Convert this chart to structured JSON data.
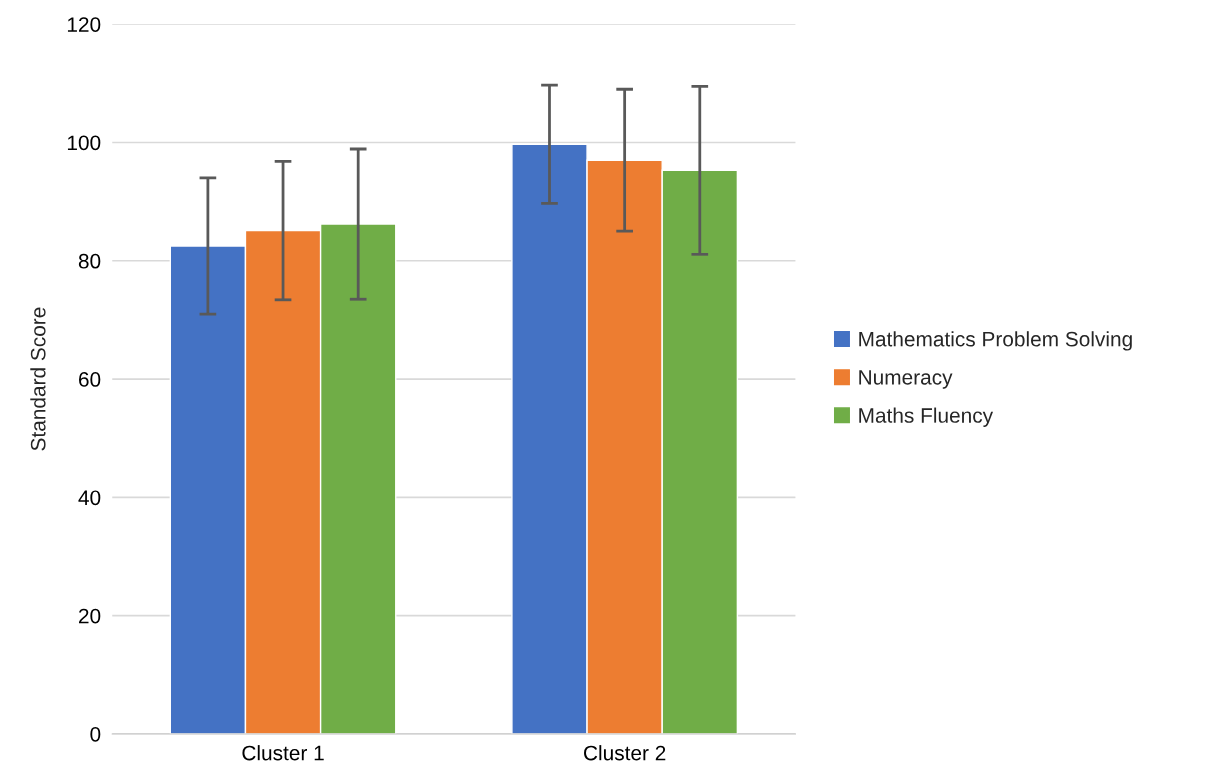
{
  "chart_data": {
    "type": "bar",
    "ylabel": "Standard Score",
    "categories": [
      "Cluster 1",
      "Cluster 2"
    ],
    "series": [
      {
        "name": "Mathematics Problem Solving",
        "color": "#4472c4",
        "values": [
          82.5,
          99.7
        ],
        "errors": [
          11.5,
          10
        ]
      },
      {
        "name": "Numeracy",
        "color": "#ed7d31",
        "values": [
          85.1,
          97.0
        ],
        "errors": [
          11.7,
          12
        ]
      },
      {
        "name": "Maths Fluency",
        "color": "#70ad47",
        "values": [
          86.2,
          95.3
        ],
        "errors": [
          12.7,
          14.2
        ]
      }
    ],
    "ylim": [
      0,
      120
    ],
    "yticks": [
      0,
      20,
      40,
      60,
      80,
      100,
      120
    ],
    "grid": "y",
    "legend": "right"
  }
}
